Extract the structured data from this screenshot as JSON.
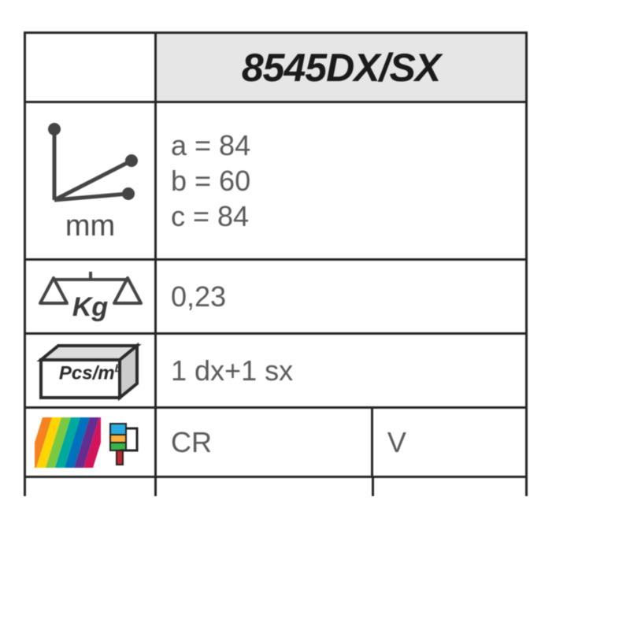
{
  "header": {
    "title": "8545DX/SX"
  },
  "dimensions": {
    "unit_label": "mm",
    "lines": [
      "a = 84",
      "b = 60",
      "c = 84"
    ]
  },
  "weight": {
    "label": "Kg",
    "value": "0,23"
  },
  "packaging": {
    "label": "Pcs/m",
    "label_exponent": "b",
    "value": "1 dx+1 sx"
  },
  "finish": {
    "primary": "CR",
    "secondary": "V"
  },
  "swatch_colors": [
    "#f58220",
    "#ffd400",
    "#7ac943",
    "#00a99d",
    "#0071bc",
    "#662d91",
    "#d4145a"
  ],
  "roller_colors": {
    "handle": "#c1272d",
    "body_top": "#29abe2",
    "body_mid": "#fbb03b",
    "body_bot": "#39b54a"
  },
  "border_color": "#262626",
  "text_color": "#5a5a5a",
  "header_bg": "#e6e6e6"
}
